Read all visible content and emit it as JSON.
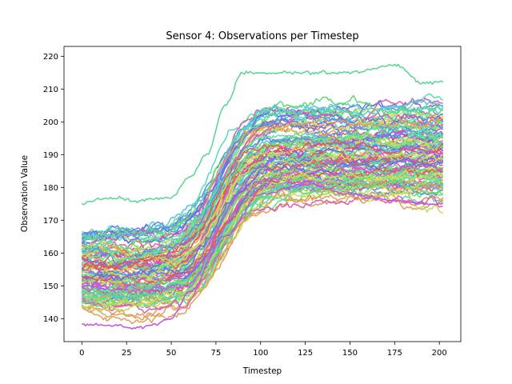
{
  "chart_data": {
    "type": "line",
    "title": "Sensor 4: Observations per Timestep",
    "xlabel": "Timestep",
    "ylabel": "Observation Value",
    "xlim": [
      -10,
      212
    ],
    "ylim": [
      133,
      223
    ],
    "xticks": [
      0,
      25,
      50,
      75,
      100,
      125,
      150,
      175,
      200
    ],
    "yticks": [
      140,
      150,
      160,
      170,
      180,
      190,
      200,
      210,
      220
    ],
    "grid": false,
    "legend": false,
    "timesteps": 203,
    "series_count": 110,
    "trend": {
      "rise_start": 48,
      "rise_end": 105,
      "rise_center": 78,
      "baseline_range": [
        138,
        169
      ],
      "plateau_range": [
        175,
        209
      ]
    },
    "highlight_series": [
      {
        "points": [
          [
            0,
            175
          ],
          [
            10,
            176.5
          ],
          [
            20,
            176.8
          ],
          [
            30,
            176
          ],
          [
            40,
            176.5
          ],
          [
            50,
            177
          ],
          [
            60,
            183
          ],
          [
            70,
            190
          ],
          [
            80,
            205
          ],
          [
            90,
            215
          ],
          [
            100,
            215
          ],
          [
            125,
            215
          ],
          [
            150,
            215
          ],
          [
            175,
            217.5
          ],
          [
            190,
            212
          ],
          [
            202,
            212
          ]
        ]
      },
      {
        "points": [
          [
            0,
            138
          ],
          [
            20,
            138
          ],
          [
            30,
            137
          ],
          [
            40,
            138
          ],
          [
            50,
            140
          ],
          [
            60,
            148
          ],
          [
            80,
            165
          ],
          [
            100,
            178
          ],
          [
            125,
            181
          ],
          [
            150,
            178
          ],
          [
            175,
            176
          ],
          [
            190,
            175
          ],
          [
            202,
            175
          ]
        ]
      }
    ],
    "palette": [
      "#e0585b",
      "#5fd978",
      "#c85bdb",
      "#59c7d6",
      "#d9d45c",
      "#7868e0",
      "#d95fb5",
      "#6fe07a",
      "#e0a05b",
      "#5b8ee0",
      "#bde05b",
      "#55e0b0"
    ]
  }
}
